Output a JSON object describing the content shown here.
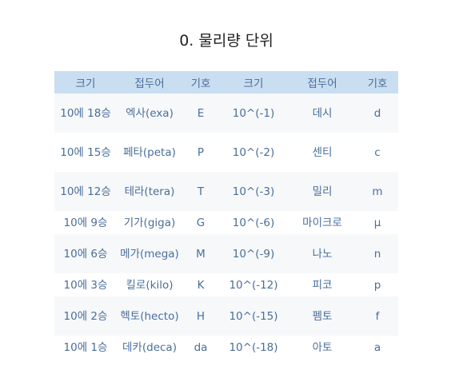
{
  "title": "0. 물리량 단위",
  "headers": [
    "크기",
    "접두어",
    "기호",
    "크기",
    "접두어",
    "기호"
  ],
  "rows": [
    [
      "10에 18승",
      "엑사(exa)",
      "E",
      "10^(-1)",
      "데시",
      "d"
    ],
    [
      "10에 15승",
      "페타(peta)",
      "P",
      "10^(-2)",
      "센티",
      "c"
    ],
    [
      "10에 12승",
      "테라(tera)",
      "T",
      "10^(-3)",
      "밀리",
      "m"
    ],
    [
      "10에 9승",
      "기가(giga)",
      "G",
      "10^(-6)",
      "마이크로",
      "μ"
    ],
    [
      "10에 6승",
      "메가(mega)",
      "M",
      "10^(-9)",
      "나노",
      "n"
    ],
    [
      "10에 3승",
      "킬로(kilo)",
      "K",
      "10^(-12)",
      "피코",
      "p"
    ],
    [
      "10에 2승",
      "헥토(hecto)",
      "H",
      "10^(-15)",
      "펨토",
      "f"
    ],
    [
      "10에 1승",
      "데카(deca)",
      "da",
      "10^(-18)",
      "아토",
      "a"
    ]
  ]
}
